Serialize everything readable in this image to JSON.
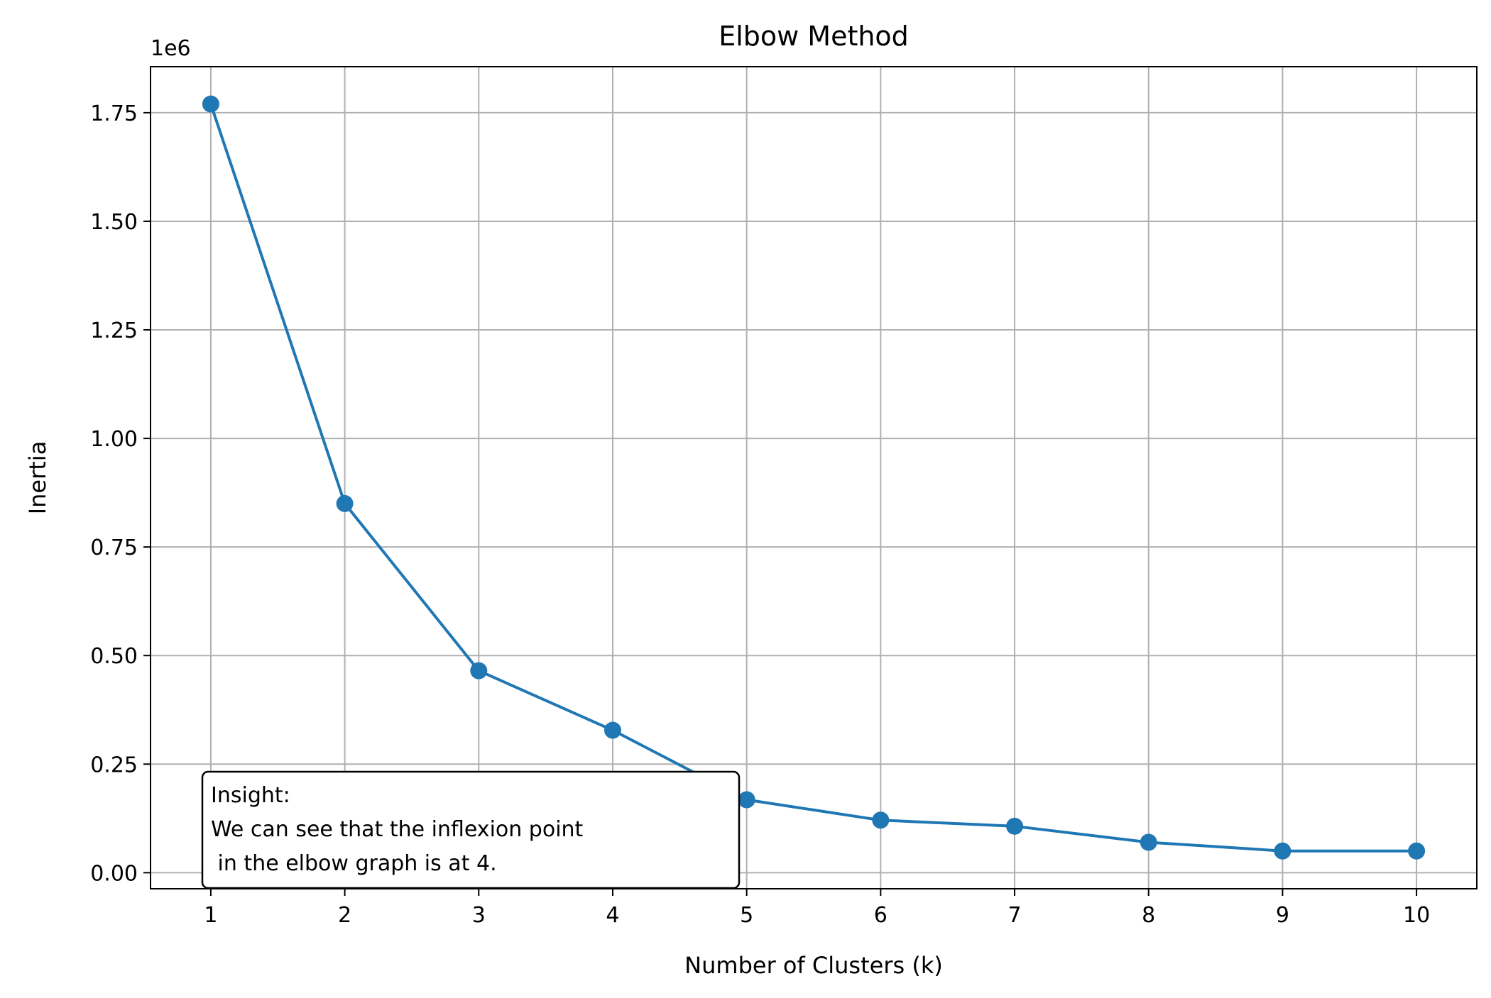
{
  "chart_data": {
    "type": "line",
    "title": "Elbow Method",
    "xlabel": "Number of Clusters (k)",
    "ylabel": "Inertia",
    "y_offset_label": "1e6",
    "x": [
      1,
      2,
      3,
      4,
      5,
      6,
      7,
      8,
      9,
      10
    ],
    "series": [
      {
        "values": [
          1770000,
          850000,
          465000,
          328000,
          168000,
          121000,
          107000,
          70000,
          50000,
          50000
        ],
        "color": "#1f77b4",
        "marker": "circle"
      }
    ],
    "xlim": [
      0.55,
      10.45
    ],
    "ylim": [
      -37000,
      1856000
    ],
    "x_ticks": [
      1,
      2,
      3,
      4,
      5,
      6,
      7,
      8,
      9,
      10
    ],
    "x_tick_labels": [
      "1",
      "2",
      "3",
      "4",
      "5",
      "6",
      "7",
      "8",
      "9",
      "10"
    ],
    "y_ticks": [
      0,
      250000,
      500000,
      750000,
      1000000,
      1250000,
      1500000,
      1750000
    ],
    "y_tick_labels": [
      "0.00",
      "0.25",
      "0.50",
      "0.75",
      "1.00",
      "1.25",
      "1.50",
      "1.75"
    ],
    "grid": true,
    "grid_color": "#b0b0b0",
    "annotation": {
      "lines": [
        "Insight:",
        "We can see that the inflexion point",
        " in the elbow graph is at 4."
      ],
      "placement": "bottom-left"
    }
  }
}
